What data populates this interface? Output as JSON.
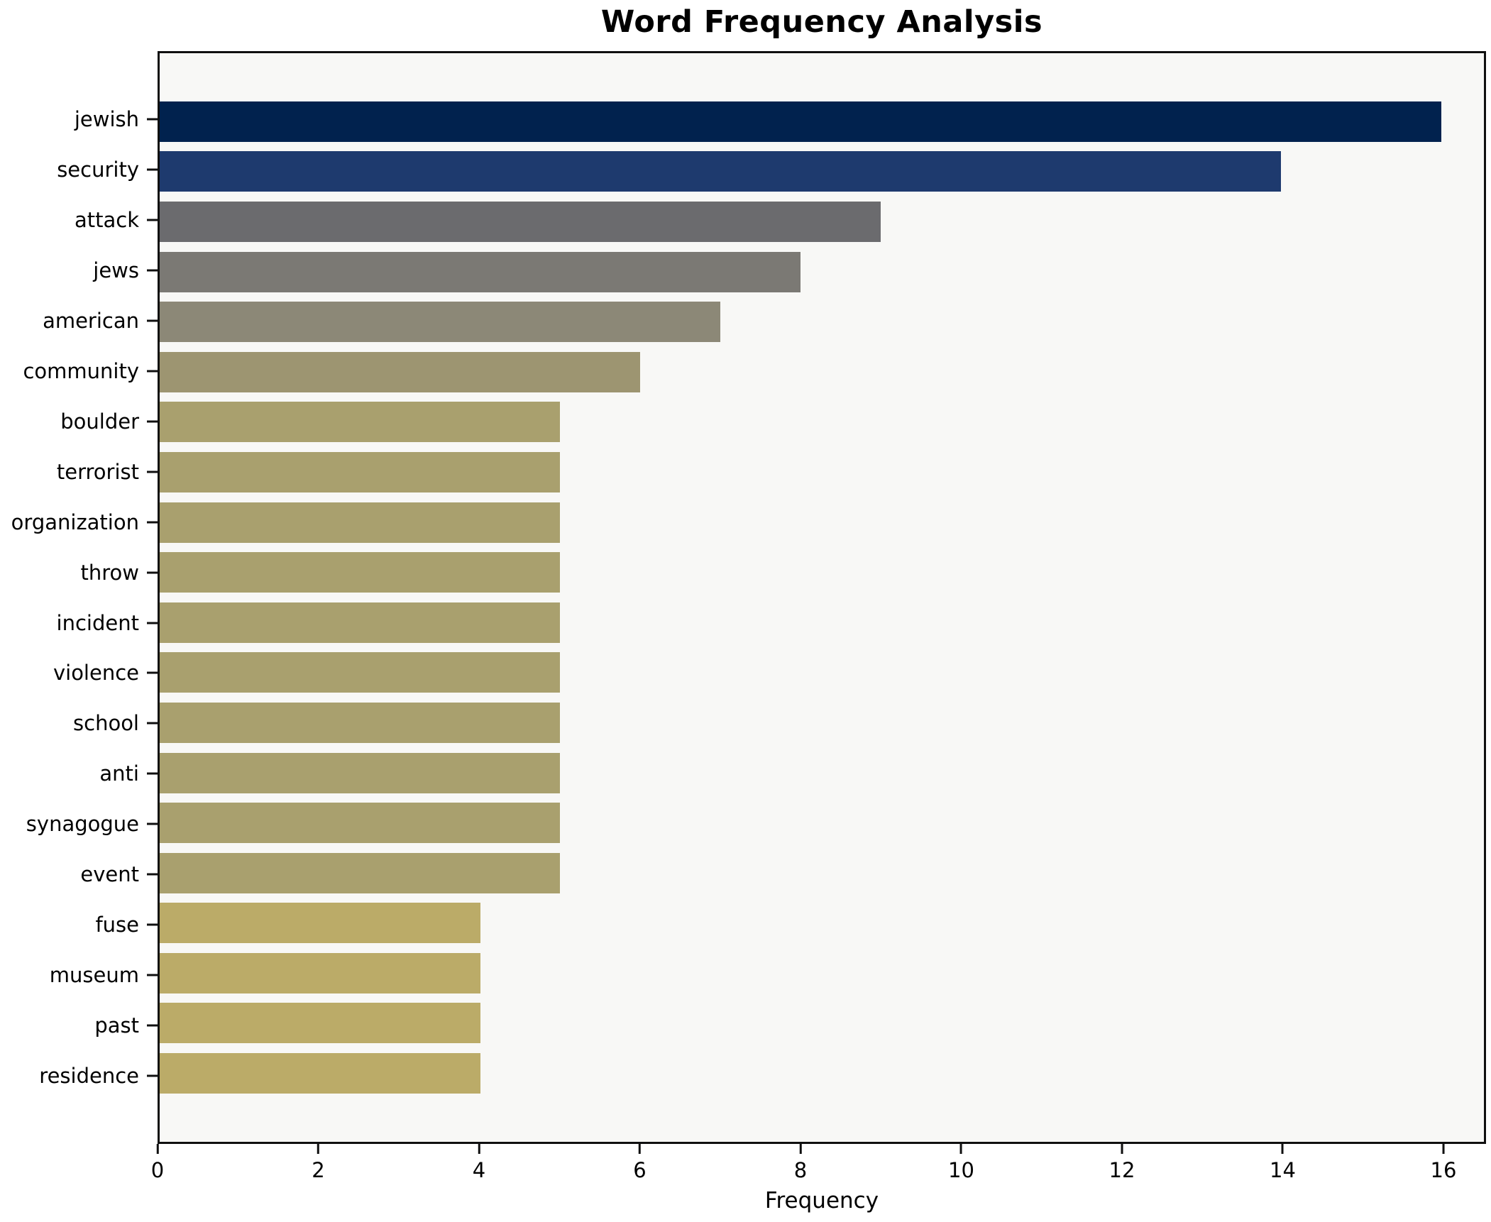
{
  "figure": {
    "background": "#ffffff",
    "plot_background": "#f8f8f6",
    "spine_color": "#101010"
  },
  "chart_data": {
    "type": "bar",
    "orientation": "horizontal",
    "title": "Word Frequency Analysis",
    "xlabel": "Frequency",
    "ylabel": "",
    "categories": [
      "jewish",
      "security",
      "attack",
      "jews",
      "american",
      "community",
      "boulder",
      "terrorist",
      "organization",
      "throw",
      "incident",
      "violence",
      "school",
      "anti",
      "synagogue",
      "event",
      "fuse",
      "museum",
      "past",
      "residence"
    ],
    "values": [
      16,
      14,
      9,
      8,
      7,
      6,
      5,
      5,
      5,
      5,
      5,
      5,
      5,
      5,
      5,
      5,
      4,
      4,
      4,
      4
    ],
    "bar_colors": [
      "#01224e",
      "#1e3a6e",
      "#6b6b6e",
      "#7b7974",
      "#8c8877",
      "#9d9571",
      "#a9a06e",
      "#a9a06e",
      "#a9a06e",
      "#a9a06e",
      "#a9a06e",
      "#a9a06e",
      "#a9a06e",
      "#a9a06e",
      "#a9a06e",
      "#a9a06e",
      "#bbab68",
      "#bbab68",
      "#bbab68",
      "#bbab68"
    ],
    "xlim": [
      0,
      16.53
    ],
    "xticks": [
      0,
      2,
      4,
      6,
      8,
      10,
      12,
      14,
      16
    ],
    "grid": false,
    "legend": null
  }
}
